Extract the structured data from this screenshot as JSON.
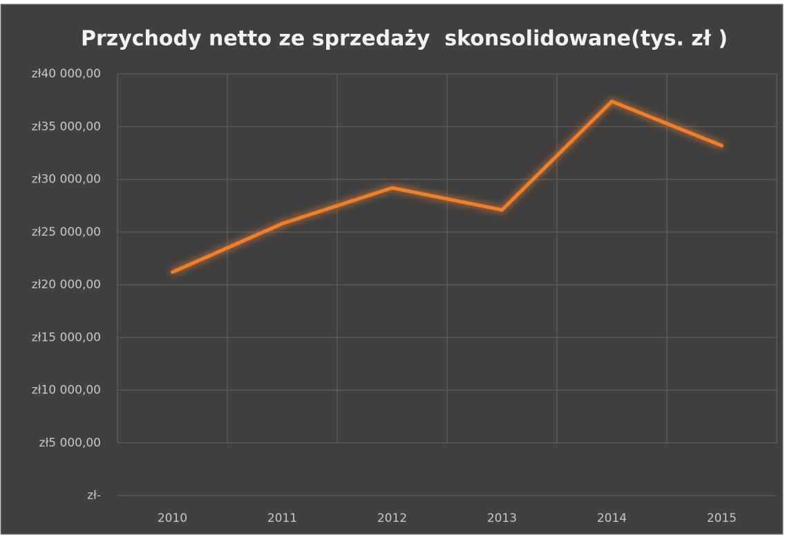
{
  "chart_data": {
    "type": "line",
    "title": "Przychody netto ze sprzedaży  skonsolidowane(tys. zł )",
    "categories": [
      "2010",
      "2011",
      "2012",
      "2013",
      "2014",
      "2015"
    ],
    "series": [
      {
        "name": "Przychody netto ze sprzedaży  skonsolidowane(tys. zł )",
        "color": "#f07f2a",
        "values": [
          21200,
          25800,
          29200,
          27100,
          37400,
          33200
        ]
      }
    ],
    "ylim": [
      0,
      40000
    ],
    "yticks": [
      {
        "value": 0,
        "label": "zł-"
      },
      {
        "value": 5000,
        "label": "zł5 000,00"
      },
      {
        "value": 10000,
        "label": "zł10 000,00"
      },
      {
        "value": 15000,
        "label": "zł15 000,00"
      },
      {
        "value": 20000,
        "label": "zł20 000,00"
      },
      {
        "value": 25000,
        "label": "zł25 000,00"
      },
      {
        "value": 30000,
        "label": "zł30 000,00"
      },
      {
        "value": 35000,
        "label": "zł35 000,00"
      },
      {
        "value": 40000,
        "label": "zł40 000,00"
      }
    ],
    "grid": true
  }
}
